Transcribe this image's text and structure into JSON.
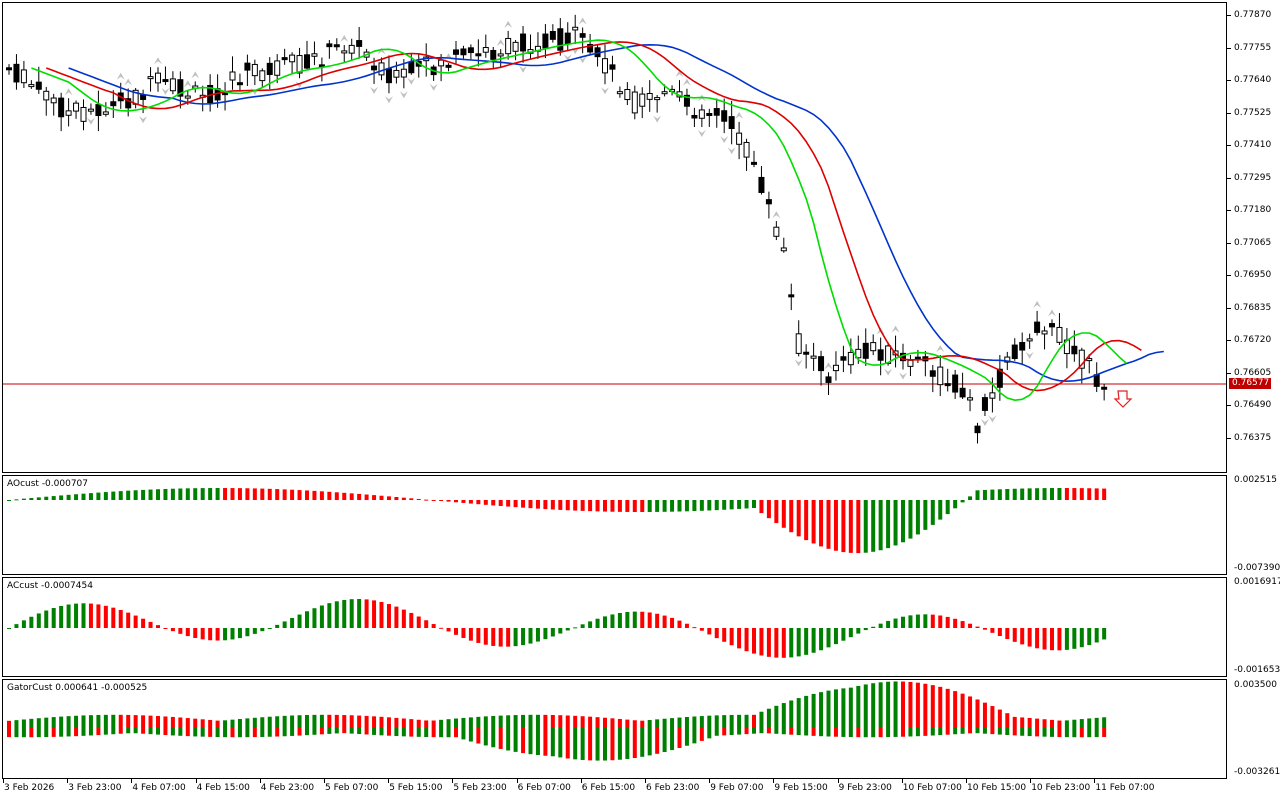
{
  "main_chart": {
    "price_levels": [
      "0.77870",
      "0.77755",
      "0.77640",
      "0.77525",
      "0.77410",
      "0.77295",
      "0.77180",
      "0.77065",
      "0.76950",
      "0.76835",
      "0.76720",
      "0.76605",
      "0.76490",
      "0.76375"
    ],
    "current_price": "0.76577",
    "alligator_colors": {
      "jaw": "#0033cc",
      "teeth": "#dd0000",
      "lips": "#00dd00"
    },
    "bull_color": "#ffffff",
    "bear_color": "#000000",
    "price_line_color": "#c00000",
    "signal_icon": "sell-arrow-icon"
  },
  "ao_panel": {
    "label": "AOcust -0.000707",
    "max": "0.002515",
    "min": "-0.007390",
    "up_color": "#008000",
    "down_color": "#ff0000"
  },
  "ac_panel": {
    "label": "ACcust -0.0007454",
    "max": "0.0016917",
    "min": "-0.0016532"
  },
  "gator_panel": {
    "label": "GatorCust 0.000641 -0.000525",
    "max": "0.003500",
    "min": "-0.003261"
  },
  "time_axis": [
    "3 Feb 2026",
    "3 Feb 23:00",
    "4 Feb 07:00",
    "4 Feb 15:00",
    "4 Feb 23:00",
    "5 Feb 07:00",
    "5 Feb 15:00",
    "5 Feb 23:00",
    "6 Feb 07:00",
    "6 Feb 15:00",
    "6 Feb 23:00",
    "9 Feb 07:00",
    "9 Feb 15:00",
    "9 Feb 23:00",
    "10 Feb 07:00",
    "10 Feb 15:00",
    "10 Feb 23:00",
    "11 Feb 07:00"
  ]
}
